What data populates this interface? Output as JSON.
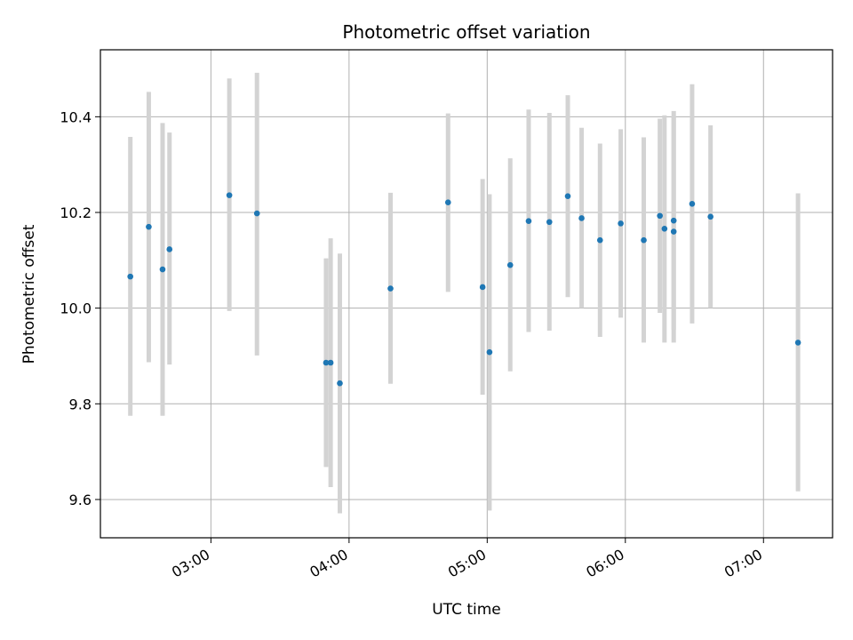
{
  "chart_data": {
    "type": "scatter",
    "title": "Photometric offset variation",
    "xlabel": "UTC time",
    "ylabel": "Photometric offset",
    "x_ticks": [
      "03:00",
      "04:00",
      "05:00",
      "06:00",
      "07:00"
    ],
    "y_ticks": [
      "9.6",
      "9.8",
      "10.0",
      "10.2",
      "10.4"
    ],
    "xlim": [
      "02:12",
      "07:30"
    ],
    "ylim": [
      9.52,
      10.54
    ],
    "grid": true,
    "legend": "none",
    "colors": {
      "point": "#1f77b4",
      "errorbar": "#d3d3d3",
      "grid": "#b0b0b0"
    },
    "points": [
      {
        "x": "02:25",
        "y": 10.066,
        "err_low": 9.775,
        "err_high": 10.358
      },
      {
        "x": "02:33",
        "y": 10.17,
        "err_low": 9.887,
        "err_high": 10.452
      },
      {
        "x": "02:39",
        "y": 10.081,
        "err_low": 9.775,
        "err_high": 10.387
      },
      {
        "x": "02:42",
        "y": 10.123,
        "err_low": 9.882,
        "err_high": 10.367
      },
      {
        "x": "03:08",
        "y": 10.236,
        "err_low": 9.994,
        "err_high": 10.48
      },
      {
        "x": "03:20",
        "y": 10.198,
        "err_low": 9.901,
        "err_high": 10.492
      },
      {
        "x": "03:50",
        "y": 9.886,
        "err_low": 9.668,
        "err_high": 10.104
      },
      {
        "x": "03:52",
        "y": 9.886,
        "err_low": 9.626,
        "err_high": 10.146
      },
      {
        "x": "03:56",
        "y": 9.843,
        "err_low": 9.571,
        "err_high": 10.114
      },
      {
        "x": "04:18",
        "y": 10.041,
        "err_low": 9.842,
        "err_high": 10.241
      },
      {
        "x": "04:43",
        "y": 10.221,
        "err_low": 10.034,
        "err_high": 10.407
      },
      {
        "x": "04:58",
        "y": 10.044,
        "err_low": 9.819,
        "err_high": 10.27
      },
      {
        "x": "05:01",
        "y": 9.908,
        "err_low": 9.577,
        "err_high": 10.238
      },
      {
        "x": "05:10",
        "y": 10.09,
        "err_low": 9.868,
        "err_high": 10.313
      },
      {
        "x": "05:18",
        "y": 10.182,
        "err_low": 9.95,
        "err_high": 10.415
      },
      {
        "x": "05:27",
        "y": 10.18,
        "err_low": 9.953,
        "err_high": 10.408
      },
      {
        "x": "05:35",
        "y": 10.234,
        "err_low": 10.023,
        "err_high": 10.445
      },
      {
        "x": "05:41",
        "y": 10.188,
        "err_low": 10.0,
        "err_high": 10.377
      },
      {
        "x": "05:49",
        "y": 10.142,
        "err_low": 9.94,
        "err_high": 10.344
      },
      {
        "x": "05:58",
        "y": 10.177,
        "err_low": 9.98,
        "err_high": 10.374
      },
      {
        "x": "06:08",
        "y": 10.142,
        "err_low": 9.928,
        "err_high": 10.357
      },
      {
        "x": "06:15",
        "y": 10.193,
        "err_low": 9.99,
        "err_high": 10.396
      },
      {
        "x": "06:17",
        "y": 10.166,
        "err_low": 9.928,
        "err_high": 10.403
      },
      {
        "x": "06:21",
        "y": 10.16,
        "err_low": 9.928,
        "err_high": 10.412
      },
      {
        "x": "06:21",
        "y": 10.183,
        "err_low": 9.955,
        "err_high": 10.4
      },
      {
        "x": "06:29",
        "y": 10.218,
        "err_low": 9.968,
        "err_high": 10.468
      },
      {
        "x": "06:37",
        "y": 10.191,
        "err_low": 10.0,
        "err_high": 10.382
      },
      {
        "x": "07:15",
        "y": 9.928,
        "err_low": 9.617,
        "err_high": 10.24
      }
    ]
  }
}
